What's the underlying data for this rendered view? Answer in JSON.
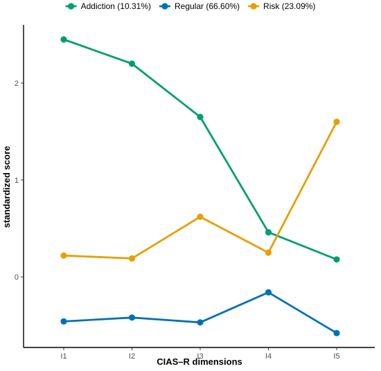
{
  "chart_data": {
    "type": "line",
    "categories": [
      "I1",
      "I2",
      "I3",
      "I4",
      "I5"
    ],
    "series": [
      {
        "name": "Addiction (10.31%)",
        "color": "#009E73",
        "values": [
          2.45,
          2.2,
          1.65,
          0.46,
          0.18
        ]
      },
      {
        "name": "Regular (66.60%)",
        "color": "#0072B2",
        "values": [
          -0.46,
          -0.42,
          -0.47,
          -0.16,
          -0.58
        ]
      },
      {
        "name": "Risk (23.09%)",
        "color": "#E69F00",
        "values": [
          0.22,
          0.19,
          0.62,
          0.25,
          1.6
        ]
      }
    ],
    "xlabel": "CIAS–R dimensions",
    "ylabel": "standardized score",
    "yticks": [
      0,
      1,
      2
    ],
    "ylim": [
      -0.72,
      2.6
    ],
    "legend_position": "top",
    "grid": false
  }
}
